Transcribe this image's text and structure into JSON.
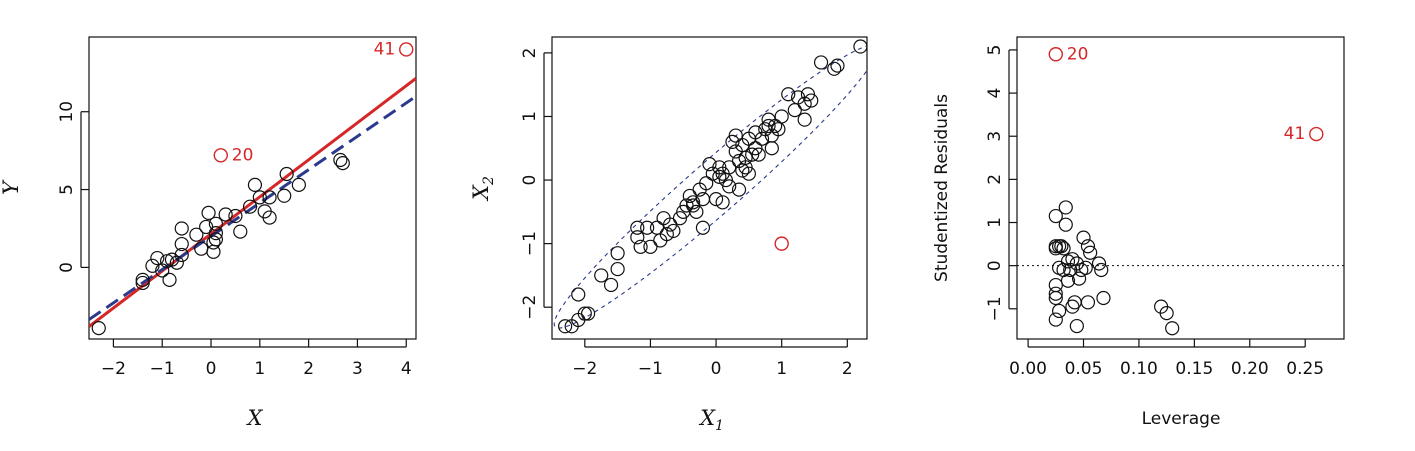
{
  "chart_data": [
    {
      "type": "scatter",
      "title": "",
      "xlabel": "X",
      "ylabel": "Y",
      "xlim": [
        -2.5,
        4.2
      ],
      "ylim": [
        -4.6,
        14.8
      ],
      "xticks": [
        -2,
        -1,
        0,
        1,
        2,
        3,
        4
      ],
      "xtick_labels": [
        "−2",
        "−1",
        "0",
        "1",
        "2",
        "3",
        "4"
      ],
      "yticks": [
        0,
        5,
        10
      ],
      "ytick_labels": [
        "0",
        "5",
        "10"
      ],
      "grid": false,
      "colors": {
        "points": "#111111",
        "highlight": "#d62728",
        "fit_all": "#d62728",
        "fit_excluded": "#2b3a8c"
      },
      "lines": [
        {
          "style": "solid",
          "color": "#d62728",
          "intercept": 2.15,
          "slope": 2.38
        },
        {
          "style": "dashed",
          "color": "#2b3a8c",
          "intercept": 2.0,
          "slope": 2.14
        }
      ],
      "points": [
        [
          -2.3,
          -3.9
        ],
        [
          -1.4,
          -1.0
        ],
        [
          -1.4,
          -0.8
        ],
        [
          -1.2,
          0.1
        ],
        [
          -1.1,
          0.6
        ],
        [
          -1.0,
          -0.2
        ],
        [
          -0.9,
          0.4
        ],
        [
          -0.85,
          -0.8
        ],
        [
          -0.8,
          0.5
        ],
        [
          -0.7,
          0.3
        ],
        [
          -0.6,
          0.8
        ],
        [
          -0.6,
          1.5
        ],
        [
          -0.6,
          2.5
        ],
        [
          -0.3,
          2.1
        ],
        [
          -0.2,
          1.2
        ],
        [
          -0.1,
          2.6
        ],
        [
          -0.05,
          3.5
        ],
        [
          0.05,
          1.6
        ],
        [
          0.05,
          1.0
        ],
        [
          0.1,
          1.8
        ],
        [
          0.1,
          2.2
        ],
        [
          0.1,
          2.8
        ],
        [
          0.3,
          3.4
        ],
        [
          0.5,
          3.3
        ],
        [
          0.6,
          2.3
        ],
        [
          0.8,
          3.9
        ],
        [
          0.9,
          5.3
        ],
        [
          1.0,
          4.5
        ],
        [
          1.1,
          3.6
        ],
        [
          1.2,
          4.5
        ],
        [
          1.2,
          3.2
        ],
        [
          1.5,
          4.6
        ],
        [
          1.55,
          6.0
        ],
        [
          1.8,
          5.3
        ],
        [
          2.65,
          6.9
        ],
        [
          2.7,
          6.7
        ]
      ],
      "highlighted": [
        {
          "x": 0.2,
          "y": 7.2,
          "label": "20"
        },
        {
          "x": 4.0,
          "y": 14.0,
          "label": "41"
        }
      ]
    },
    {
      "type": "scatter",
      "title": "",
      "xlabel_base": "X",
      "xlabel_sub": "1",
      "ylabel_base": "X",
      "ylabel_sub": "2",
      "xlim": [
        -2.5,
        2.3
      ],
      "ylim": [
        -2.5,
        2.25
      ],
      "xticks": [
        -2,
        -1,
        0,
        1,
        2
      ],
      "xtick_labels": [
        "−2",
        "−1",
        "0",
        "1",
        "2"
      ],
      "yticks": [
        -2,
        -1,
        0,
        1,
        2
      ],
      "ytick_labels": [
        "−2",
        "−1",
        "0",
        "1",
        "2"
      ],
      "grid": false,
      "colors": {
        "points": "#111111",
        "highlight": "#d62728",
        "ellipse": "#2b3a8c"
      },
      "ellipse": {
        "center": [
          0.0,
          -0.1
        ],
        "semi_major": 3.3,
        "semi_minor": 0.4,
        "angle_deg": 42
      },
      "points": [
        [
          -2.3,
          -2.3
        ],
        [
          -2.2,
          -2.3
        ],
        [
          -2.1,
          -2.2
        ],
        [
          -2.0,
          -2.1
        ],
        [
          -1.95,
          -2.1
        ],
        [
          -2.1,
          -1.8
        ],
        [
          -1.75,
          -1.5
        ],
        [
          -1.6,
          -1.65
        ],
        [
          -1.5,
          -1.4
        ],
        [
          -1.5,
          -1.15
        ],
        [
          -1.2,
          -0.9
        ],
        [
          -1.2,
          -0.75
        ],
        [
          -1.15,
          -1.05
        ],
        [
          -1.05,
          -0.75
        ],
        [
          -1.0,
          -1.05
        ],
        [
          -0.9,
          -0.75
        ],
        [
          -0.85,
          -0.95
        ],
        [
          -0.8,
          -0.6
        ],
        [
          -0.75,
          -0.85
        ],
        [
          -0.7,
          -0.7
        ],
        [
          -0.65,
          -0.8
        ],
        [
          -0.55,
          -0.6
        ],
        [
          -0.5,
          -0.5
        ],
        [
          -0.45,
          -0.4
        ],
        [
          -0.4,
          -0.25
        ],
        [
          -0.35,
          -0.35
        ],
        [
          -0.3,
          -0.5
        ],
        [
          -0.25,
          -0.15
        ],
        [
          -0.2,
          -0.3
        ],
        [
          -0.2,
          -0.75
        ],
        [
          -0.15,
          -0.05
        ],
        [
          -0.1,
          0.25
        ],
        [
          -0.05,
          0.1
        ],
        [
          0.0,
          -0.3
        ],
        [
          0.05,
          0.05
        ],
        [
          0.05,
          0.2
        ],
        [
          0.1,
          0.1
        ],
        [
          0.1,
          -0.35
        ],
        [
          0.15,
          0.0
        ],
        [
          0.2,
          0.2
        ],
        [
          0.2,
          -0.1
        ],
        [
          0.25,
          0.6
        ],
        [
          0.3,
          0.45
        ],
        [
          0.3,
          0.7
        ],
        [
          0.35,
          0.3
        ],
        [
          0.4,
          0.15
        ],
        [
          0.4,
          0.55
        ],
        [
          0.45,
          0.2
        ],
        [
          0.45,
          0.35
        ],
        [
          0.5,
          0.65
        ],
        [
          0.5,
          0.1
        ],
        [
          0.55,
          0.4
        ],
        [
          0.6,
          0.75
        ],
        [
          0.6,
          0.5
        ],
        [
          0.65,
          0.4
        ],
        [
          0.7,
          0.65
        ],
        [
          0.75,
          0.8
        ],
        [
          0.8,
          0.95
        ],
        [
          0.8,
          0.85
        ],
        [
          0.85,
          0.7
        ],
        [
          0.85,
          0.5
        ],
        [
          0.9,
          0.85
        ],
        [
          0.95,
          0.8
        ],
        [
          1.0,
          1.0
        ],
        [
          1.1,
          1.35
        ],
        [
          1.2,
          1.1
        ],
        [
          1.25,
          1.3
        ],
        [
          1.35,
          1.2
        ],
        [
          1.4,
          1.35
        ],
        [
          1.45,
          1.25
        ],
        [
          1.6,
          1.85
        ],
        [
          1.8,
          1.75
        ],
        [
          1.85,
          1.8
        ],
        [
          2.2,
          2.1
        ],
        [
          -0.35,
          -0.4
        ],
        [
          0.35,
          -0.15
        ],
        [
          1.35,
          0.95
        ]
      ],
      "highlighted": [
        {
          "x": 1.0,
          "y": -1.0,
          "label": ""
        }
      ]
    },
    {
      "type": "scatter",
      "title": "",
      "xlabel": "Leverage",
      "ylabel": "Studentized Residuals",
      "xlim": [
        -0.01,
        0.285
      ],
      "ylim": [
        -1.7,
        5.3
      ],
      "xticks": [
        0.0,
        0.05,
        0.1,
        0.15,
        0.2,
        0.25
      ],
      "xtick_labels": [
        "0.00",
        "0.05",
        "0.10",
        "0.15",
        "0.20",
        "0.25"
      ],
      "yticks": [
        -1,
        0,
        1,
        2,
        3,
        4,
        5
      ],
      "ytick_labels": [
        "−1",
        "0",
        "1",
        "2",
        "3",
        "4",
        "5"
      ],
      "grid": false,
      "colors": {
        "points": "#111111",
        "highlight": "#d62728",
        "refline": "#111111"
      },
      "refline_y": 0,
      "points": [
        [
          0.025,
          1.15
        ],
        [
          0.025,
          0.45
        ],
        [
          0.025,
          0.4
        ],
        [
          0.025,
          -0.45
        ],
        [
          0.025,
          -0.65
        ],
        [
          0.025,
          -0.75
        ],
        [
          0.025,
          -1.25
        ],
        [
          0.028,
          0.45
        ],
        [
          0.028,
          -0.05
        ],
        [
          0.028,
          -1.05
        ],
        [
          0.03,
          0.45
        ],
        [
          0.032,
          0.4
        ],
        [
          0.032,
          -0.1
        ],
        [
          0.034,
          1.35
        ],
        [
          0.034,
          0.95
        ],
        [
          0.036,
          0.1
        ],
        [
          0.036,
          -0.35
        ],
        [
          0.038,
          -0.1
        ],
        [
          0.04,
          0.15
        ],
        [
          0.04,
          -0.95
        ],
        [
          0.042,
          -0.85
        ],
        [
          0.044,
          -1.4
        ],
        [
          0.044,
          0.05
        ],
        [
          0.046,
          -0.3
        ],
        [
          0.048,
          -0.1
        ],
        [
          0.05,
          0.65
        ],
        [
          0.052,
          -0.05
        ],
        [
          0.054,
          0.45
        ],
        [
          0.054,
          -0.85
        ],
        [
          0.056,
          0.3
        ],
        [
          0.064,
          0.05
        ],
        [
          0.066,
          -0.1
        ],
        [
          0.068,
          -0.75
        ],
        [
          0.12,
          -0.95
        ],
        [
          0.125,
          -1.1
        ],
        [
          0.13,
          -1.45
        ]
      ],
      "highlighted": [
        {
          "x": 0.025,
          "y": 4.9,
          "label": "20"
        },
        {
          "x": 0.26,
          "y": 3.05,
          "label": "41"
        }
      ]
    }
  ]
}
